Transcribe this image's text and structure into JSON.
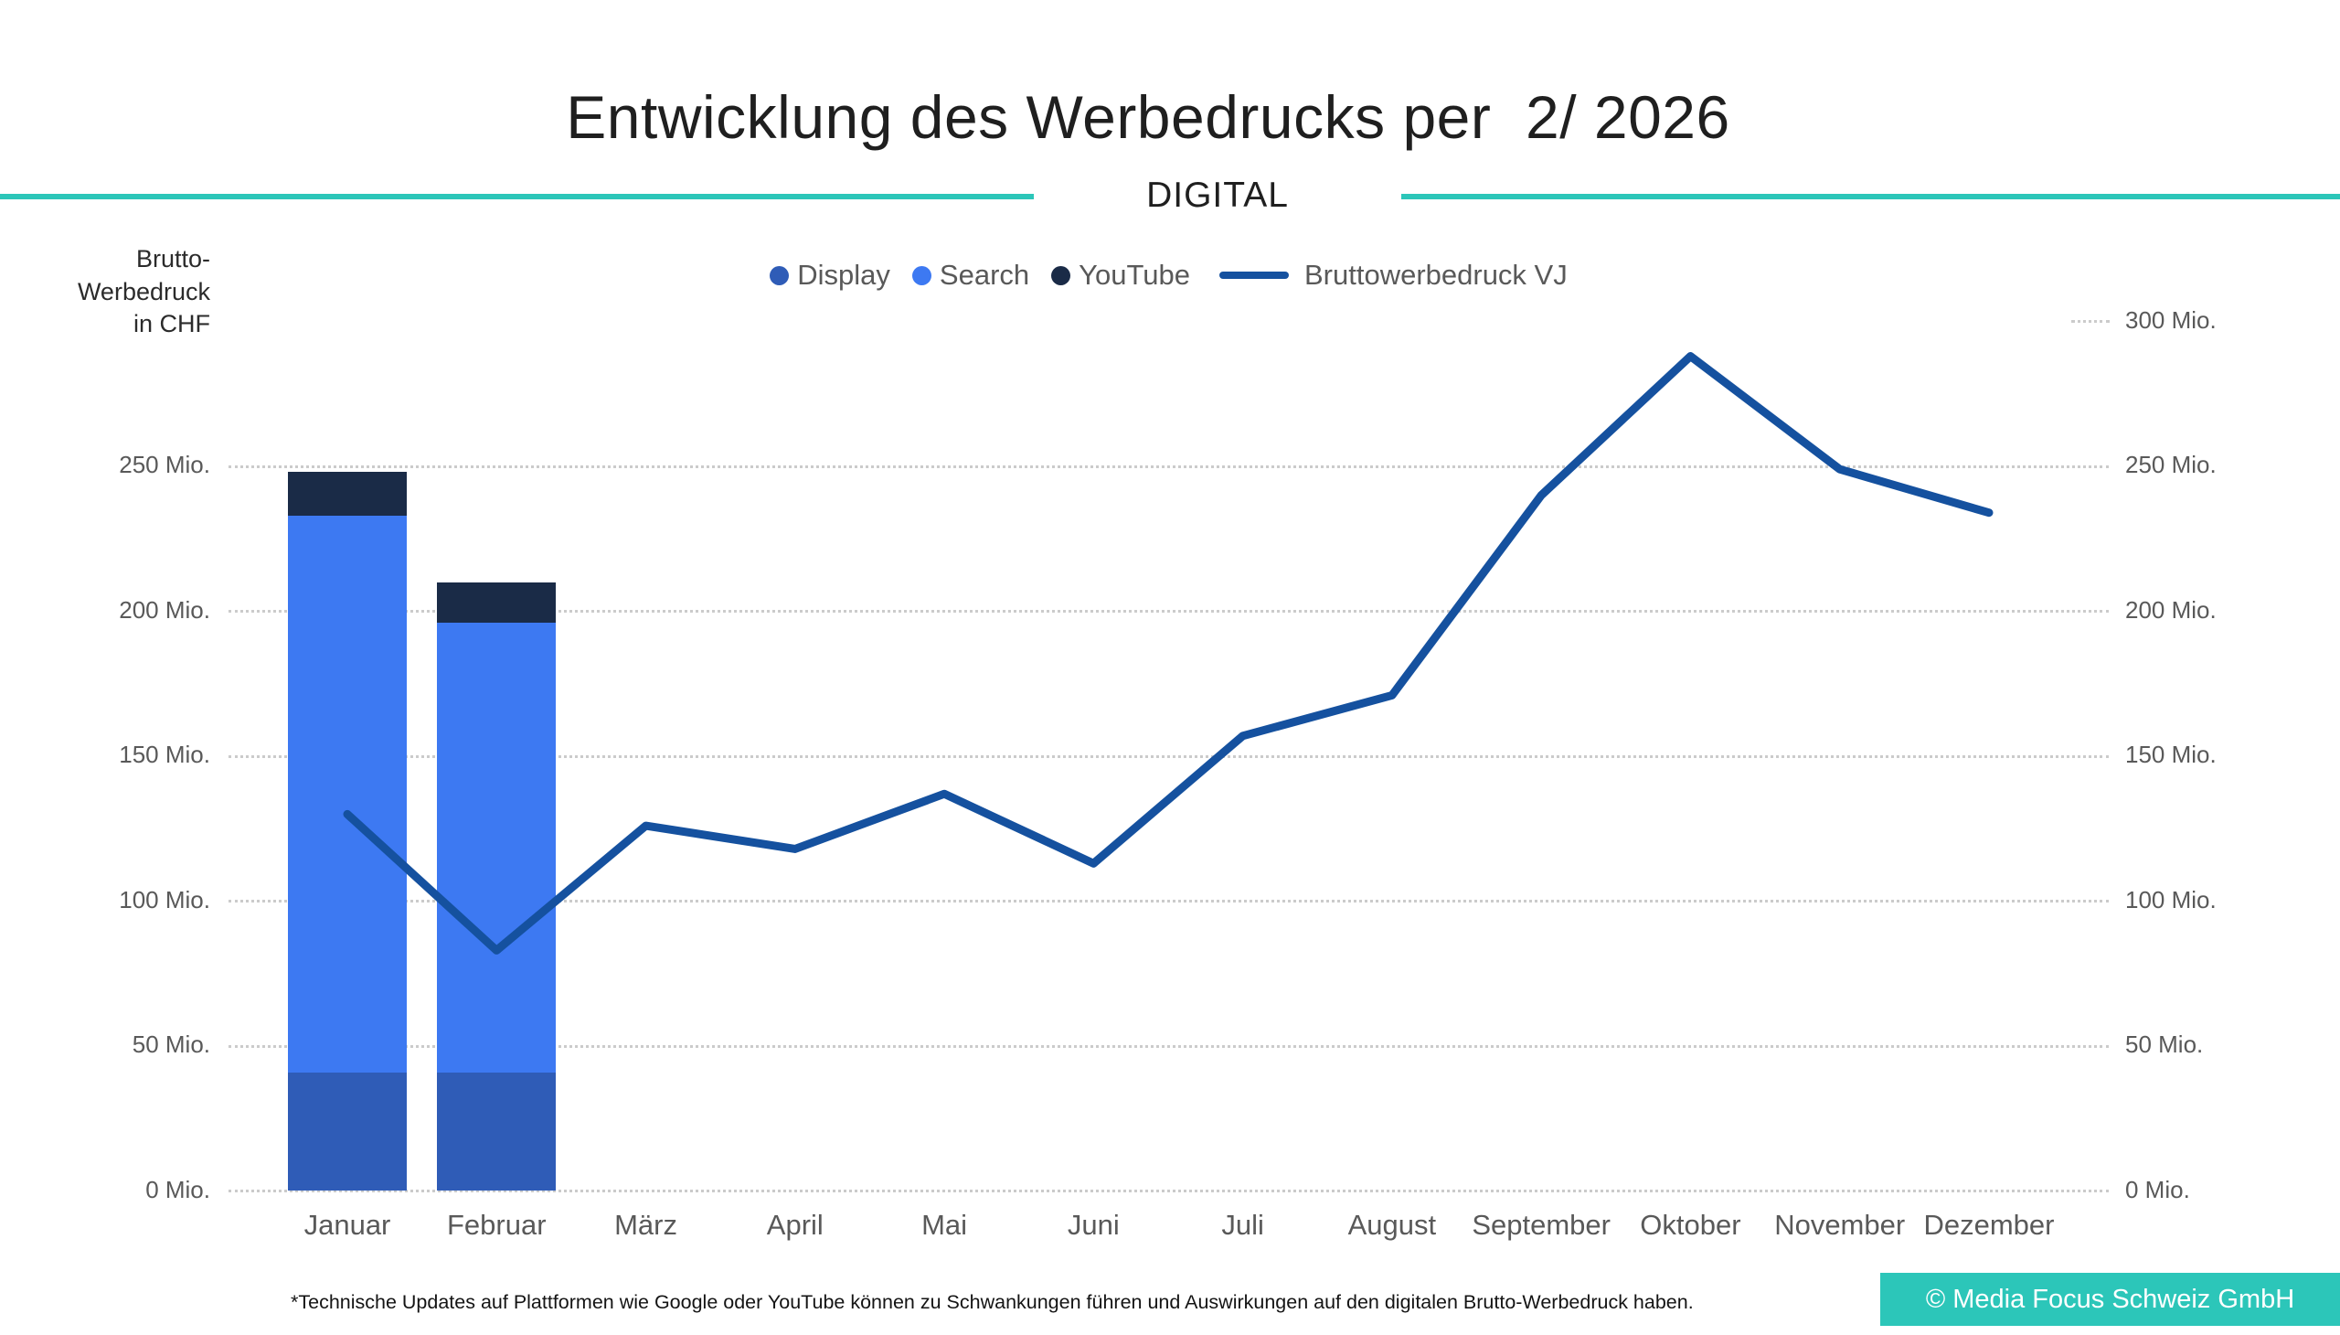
{
  "header": {
    "title": "Entwicklung des Werbedrucks per  2/ 2026",
    "subtitle": "DIGITAL"
  },
  "y_axis_title": {
    "lines": [
      "Brutto-",
      "Werbedruck",
      "in CHF"
    ]
  },
  "legend": [
    {
      "label": "Display",
      "marker": "dot",
      "color": "#2F5CB7"
    },
    {
      "label": "Search",
      "marker": "dot",
      "color": "#3D79F2"
    },
    {
      "label": "YouTube",
      "marker": "dot",
      "color": "#1A2B47"
    },
    {
      "label": "Bruttowerbedruck VJ",
      "marker": "line",
      "color": "#15519F"
    }
  ],
  "chart_data": {
    "type": "bar+line",
    "title": "Entwicklung des Werbedrucks per 2/ 2026 — DIGITAL",
    "unit": "Mio. CHF",
    "categories": [
      "Januar",
      "Februar",
      "März",
      "April",
      "Mai",
      "Juni",
      "Juli",
      "August",
      "September",
      "Oktober",
      "November",
      "Dezember"
    ],
    "bar_series": [
      {
        "name": "Display",
        "color": "#2F5CB7",
        "values": [
          41,
          41,
          null,
          null,
          null,
          null,
          null,
          null,
          null,
          null,
          null,
          null
        ]
      },
      {
        "name": "Search",
        "color": "#3D79F2",
        "values": [
          192,
          155,
          null,
          null,
          null,
          null,
          null,
          null,
          null,
          null,
          null,
          null
        ]
      },
      {
        "name": "YouTube",
        "color": "#1A2B47",
        "values": [
          15,
          14,
          null,
          null,
          null,
          null,
          null,
          null,
          null,
          null,
          null,
          null
        ]
      }
    ],
    "line_series": {
      "name": "Bruttowerbedruck VJ",
      "color": "#15519F",
      "values": [
        130,
        83,
        126,
        118,
        137,
        113,
        157,
        171,
        240,
        288,
        249,
        234
      ]
    },
    "y_ticks": [
      {
        "value": 0,
        "label": "0 Mio.",
        "left_label": true,
        "full_gridline": true
      },
      {
        "value": 50,
        "label": "50 Mio.",
        "left_label": true,
        "full_gridline": true
      },
      {
        "value": 100,
        "label": "100 Mio.",
        "left_label": true,
        "full_gridline": true
      },
      {
        "value": 150,
        "label": "150 Mio.",
        "left_label": true,
        "full_gridline": true
      },
      {
        "value": 200,
        "label": "200 Mio.",
        "left_label": true,
        "full_gridline": true
      },
      {
        "value": 250,
        "label": "250 Mio.",
        "left_label": true,
        "full_gridline": true
      },
      {
        "value": 300,
        "label": "300 Mio.",
        "left_label": false,
        "full_gridline": false
      }
    ],
    "ylim": [
      0,
      300
    ],
    "xlabel": "",
    "ylabel": "Brutto-Werbedruck in CHF",
    "grid": "horizontal-dotted",
    "legend_position": "top-center"
  },
  "footer": {
    "footnote": "*Technische Updates auf Plattformen wie Google oder YouTube können zu Schwankungen führen und Auswirkungen auf den digitalen Brutto-Werbedruck haben.",
    "copyright": "© Media Focus Schweiz GmbH"
  },
  "colors": {
    "accent_teal": "#2CC6B9",
    "gridline": "#CBCBCB",
    "axis_text": "#595959",
    "title_text": "#1F1F1F",
    "background": "#FFFFFF"
  }
}
